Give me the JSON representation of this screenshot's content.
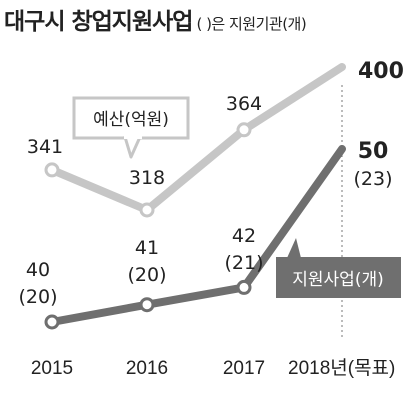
{
  "title": {
    "main": "대구시 창업지원사업",
    "sub": "( )은 지원기관(개)"
  },
  "chart_data": {
    "type": "line",
    "title": "대구시 창업지원사업",
    "subtitle": "( )은 지원기관(개)",
    "categories": [
      "2015",
      "2016",
      "2017",
      "2018년(목표)"
    ],
    "series": [
      {
        "name": "예산(억원)",
        "values": [
          341,
          318,
          364,
          400
        ],
        "labels": [
          "341",
          "318",
          "364",
          "400"
        ],
        "color": "#c6c6c6"
      },
      {
        "name": "지원사업(개)",
        "values": [
          40,
          41,
          42,
          50
        ],
        "agencies": [
          20,
          20,
          21,
          23
        ],
        "labels": [
          "40",
          "41",
          "42",
          "50"
        ],
        "sublabels": [
          "(20)",
          "(20)",
          "(21)",
          "(23)"
        ],
        "color": "#6f6f6f"
      }
    ],
    "target_marker": "dotted vertical line at 2018",
    "grid": false
  }
}
